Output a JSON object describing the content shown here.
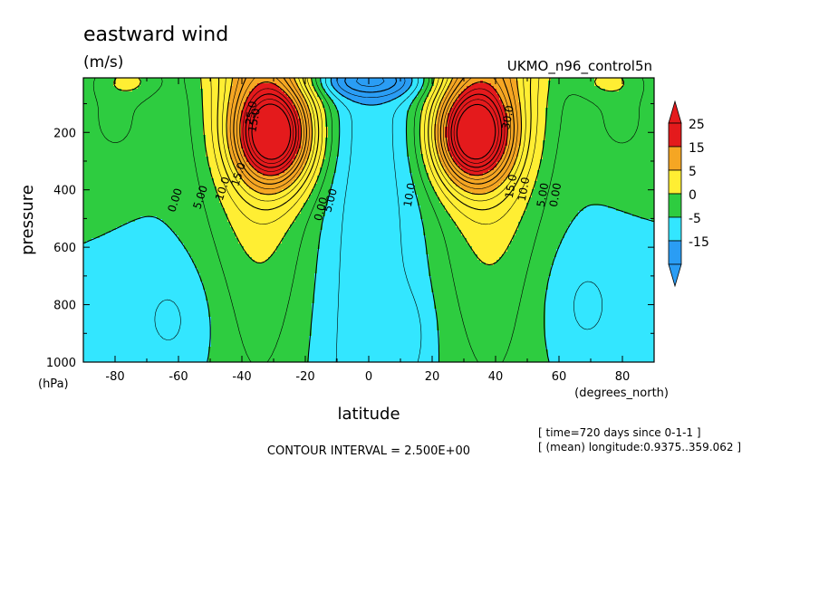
{
  "chart_data": {
    "type": "heatmap",
    "title": "eastward wind",
    "units": "(m/s)",
    "dataset": "UKMO_n96_control5n",
    "xlabel": "latitude",
    "x_units": "(degrees_north)",
    "ylabel": "pressure",
    "y_units": "(hPa)",
    "xlim": [
      -90,
      90
    ],
    "ylim": [
      1000,
      10
    ],
    "x_ticks": [
      -80,
      -60,
      -40,
      -20,
      0,
      20,
      40,
      60,
      80
    ],
    "y_ticks": [
      200,
      400,
      600,
      800,
      1000
    ],
    "contour_interval_text": "CONTOUR INTERVAL = 2.500E+00",
    "time_text": "[ time=720 days since 0-1-1 ]",
    "longitude_text": "[ (mean) longitude:0.9375..359.062 ]",
    "colorbar": {
      "labels": [
        "25",
        "15",
        "5",
        "0",
        "-5",
        "-15"
      ],
      "colors": [
        "#e41a1c",
        "#f5a623",
        "#ffee33",
        "#2ecc40",
        "#33e6ff",
        "#2a9df4"
      ],
      "extend": "both"
    },
    "jets": [
      {
        "lat": -30,
        "p": 210,
        "u": 32
      },
      {
        "lat": 33,
        "p": 210,
        "u": 32
      }
    ],
    "contour_labels": [
      "0.00",
      "5.00",
      "10.0",
      "15.0",
      "0.00",
      "5.00",
      "10.0",
      "15.0",
      "0.00",
      "5.00",
      "10.0",
      "15.0",
      "30.0",
      "25.0"
    ]
  }
}
